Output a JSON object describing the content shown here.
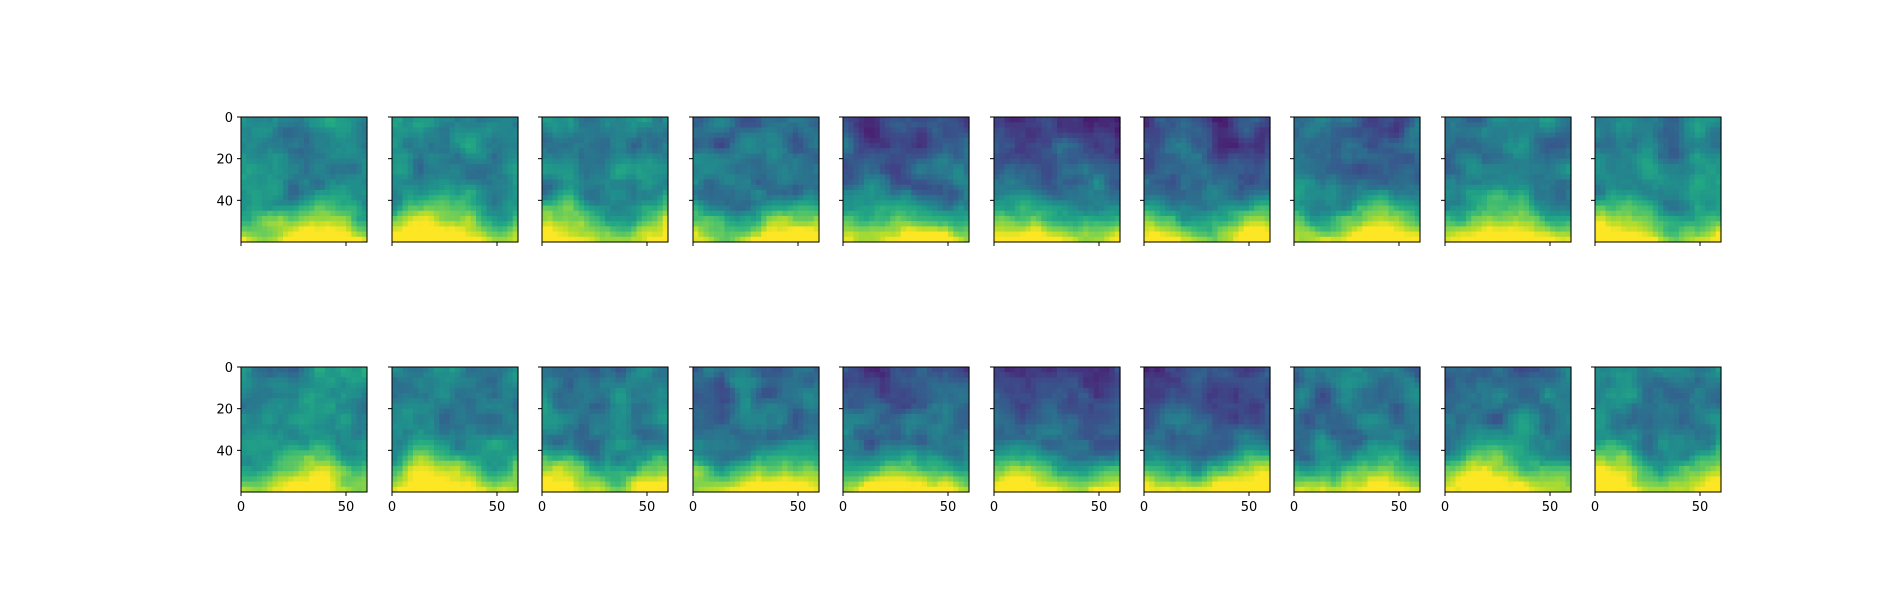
{
  "chart_data": {
    "type": "heatmap",
    "colormap": "viridis",
    "layout": {
      "rows": 2,
      "cols": 10
    },
    "image_extent": {
      "width": 60,
      "height": 60
    },
    "xlim": [
      0,
      60
    ],
    "ylim": [
      60,
      0
    ],
    "x_ticks": [
      0,
      50
    ],
    "y_ticks": [
      0,
      20,
      40
    ],
    "x_tick_labels": [
      "0",
      "50"
    ],
    "y_tick_labels": [
      "0",
      "20",
      "40"
    ],
    "tick_labels_shown": "outer axes only (y labels on first column, x labels on bottom row)",
    "title": "",
    "xlabel": "",
    "ylabel": "",
    "colors": {
      "frame": "#000000",
      "background": "#ffffff"
    }
  }
}
